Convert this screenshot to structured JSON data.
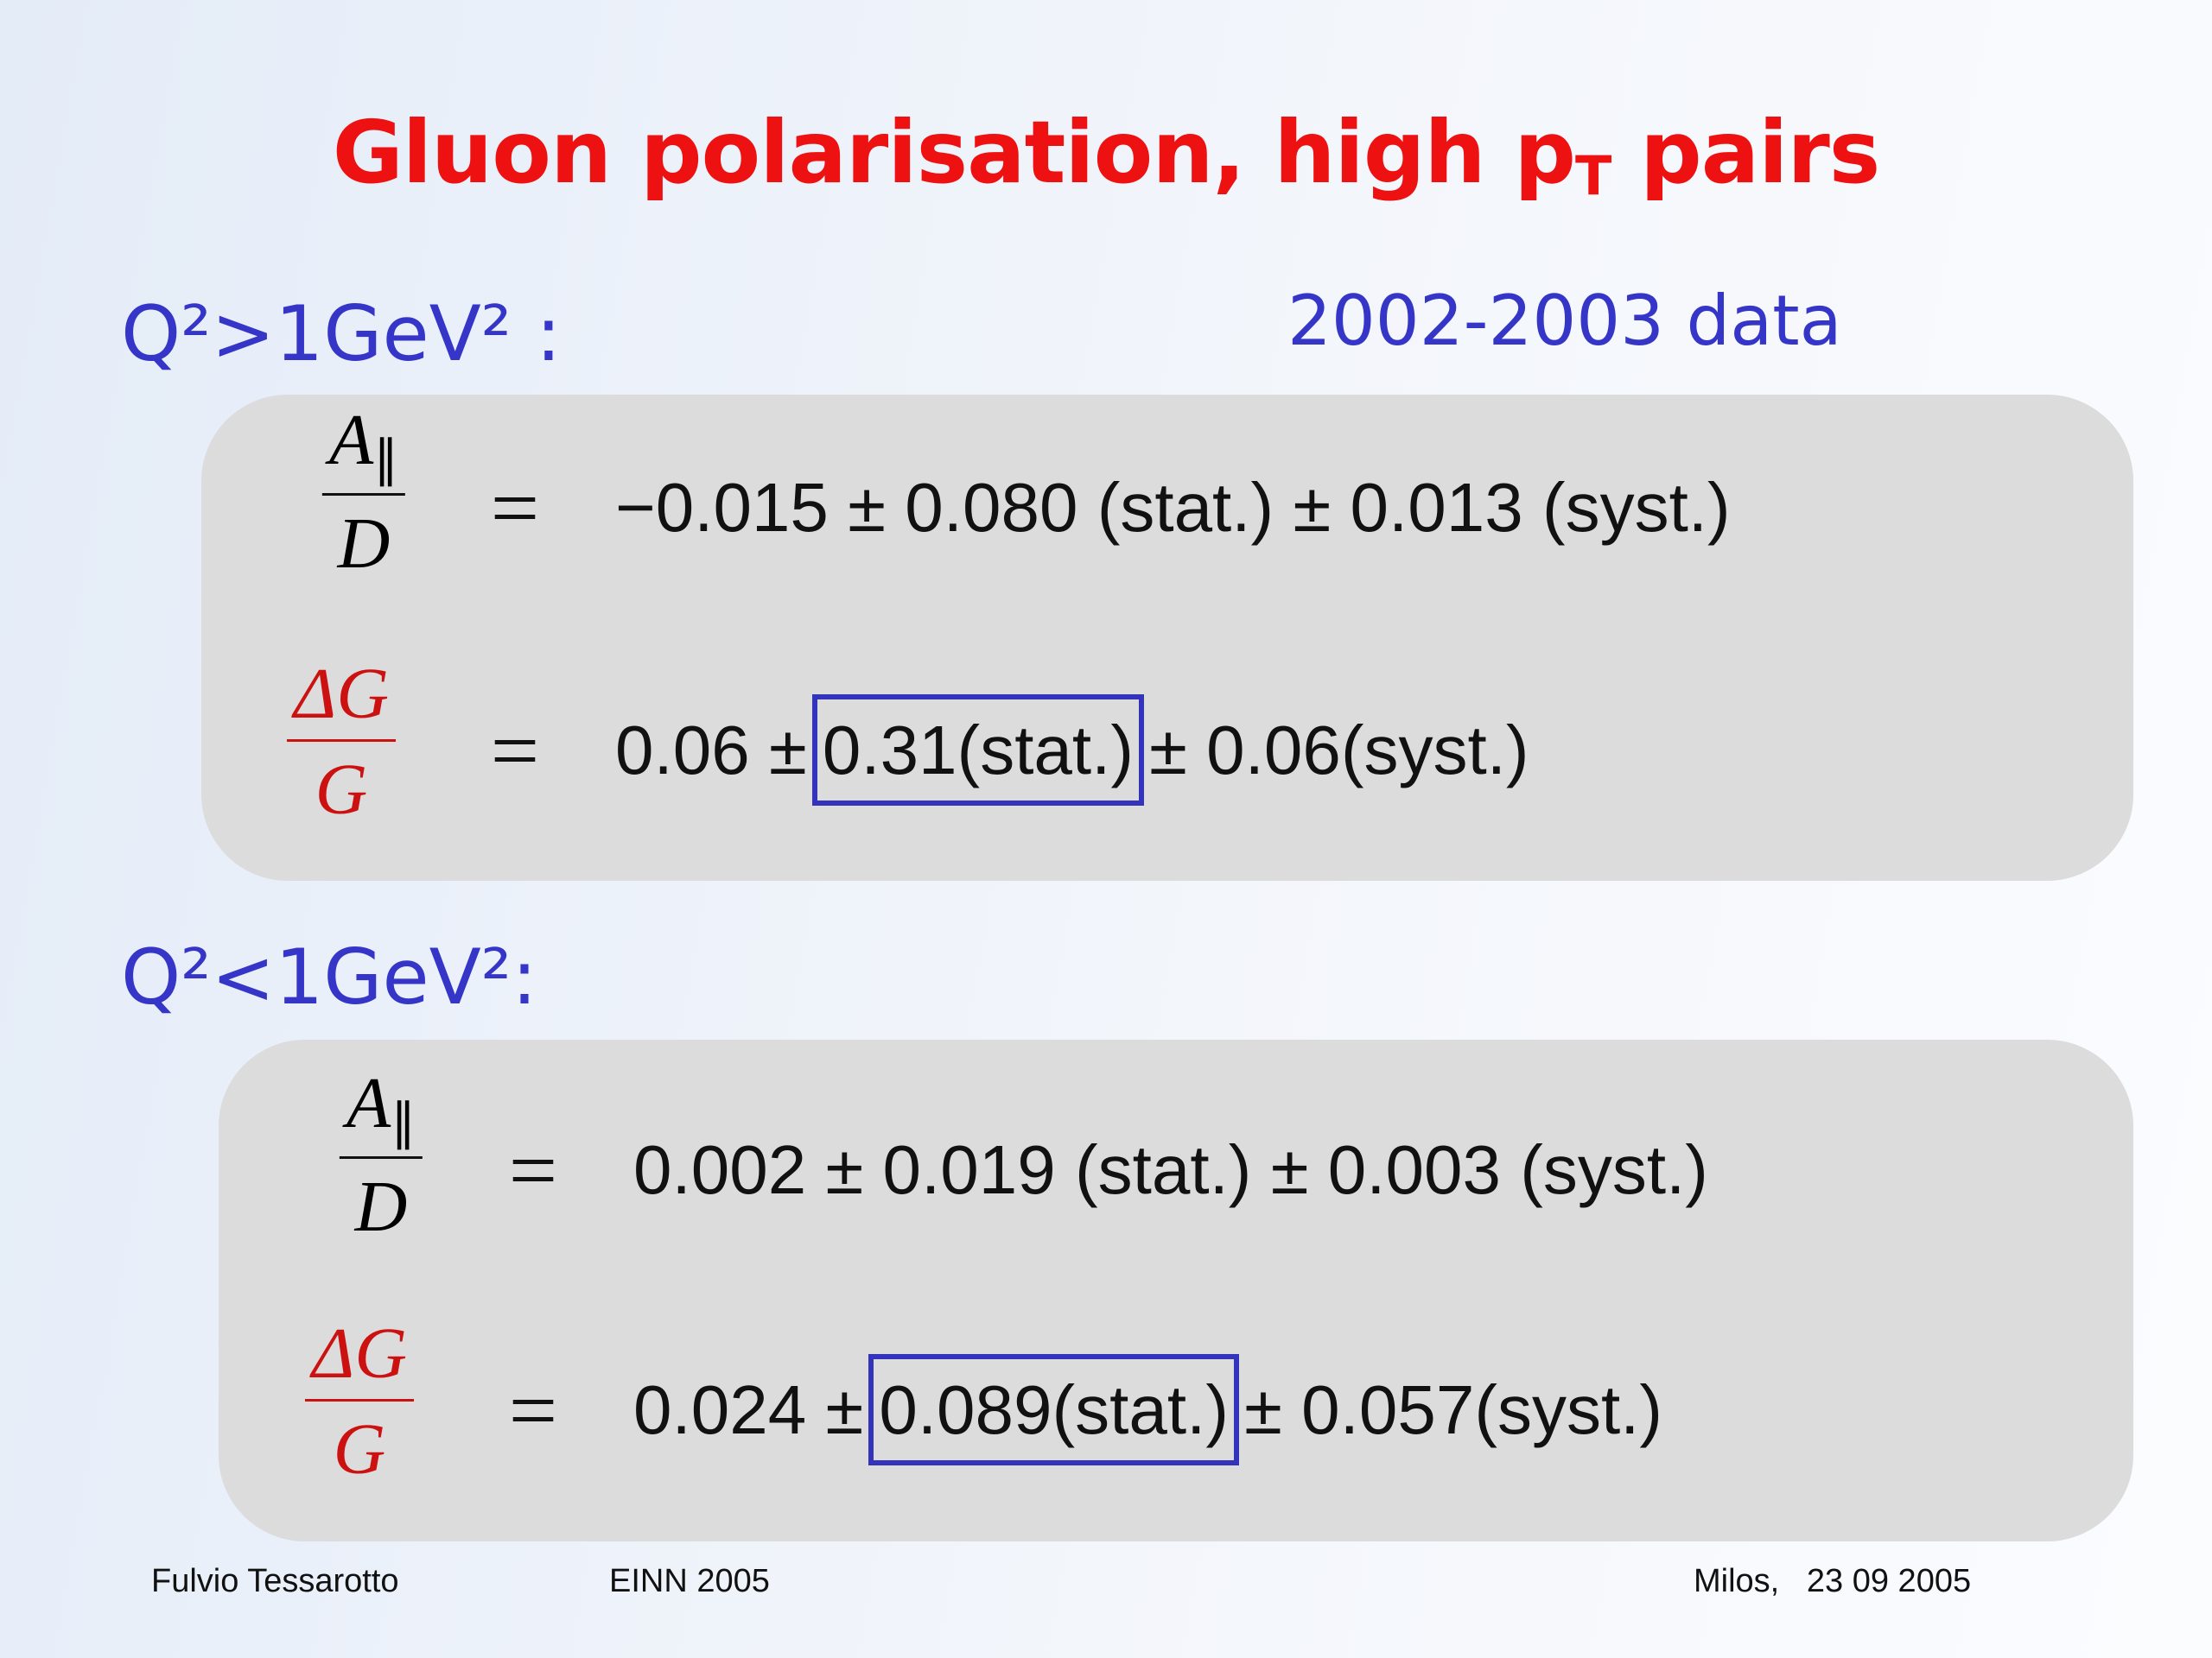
{
  "title": {
    "text": "Gluon polarisation, high p",
    "subscript": "T",
    "suffix": " pairs"
  },
  "sections": [
    {
      "label": "Q²>1GeV² :",
      "note": "2002-2003 data",
      "equations": [
        {
          "numerator": "A",
          "numerator_subscript": "∥",
          "denominator": "D",
          "relation": "=",
          "rhs": "−0.015 ± 0.080 (stat.) ± 0.013 (syst.)"
        },
        {
          "numerator": "ΔG",
          "denominator": "G",
          "relation": "=",
          "rhs_before": "0.06 ±",
          "rhs_boxed": "0.31(stat.)",
          "rhs_after": "± 0.06(syst.)"
        }
      ]
    },
    {
      "label": "Q²<1GeV²:",
      "equations": [
        {
          "numerator": "A",
          "numerator_subscript": "∥",
          "denominator": "D",
          "relation": "=",
          "rhs": "0.002 ± 0.019 (stat.) ± 0.003 (syst.)"
        },
        {
          "numerator": "ΔG",
          "denominator": "G",
          "relation": "=",
          "rhs_before": "0.024 ±",
          "rhs_boxed": "0.089(stat.)",
          "rhs_after": "± 0.057(syst.)"
        }
      ]
    }
  ],
  "footer": {
    "author": "Fulvio Tessarotto",
    "event": "EINN 2005",
    "place_date": "Milos,   23 09 2005"
  }
}
